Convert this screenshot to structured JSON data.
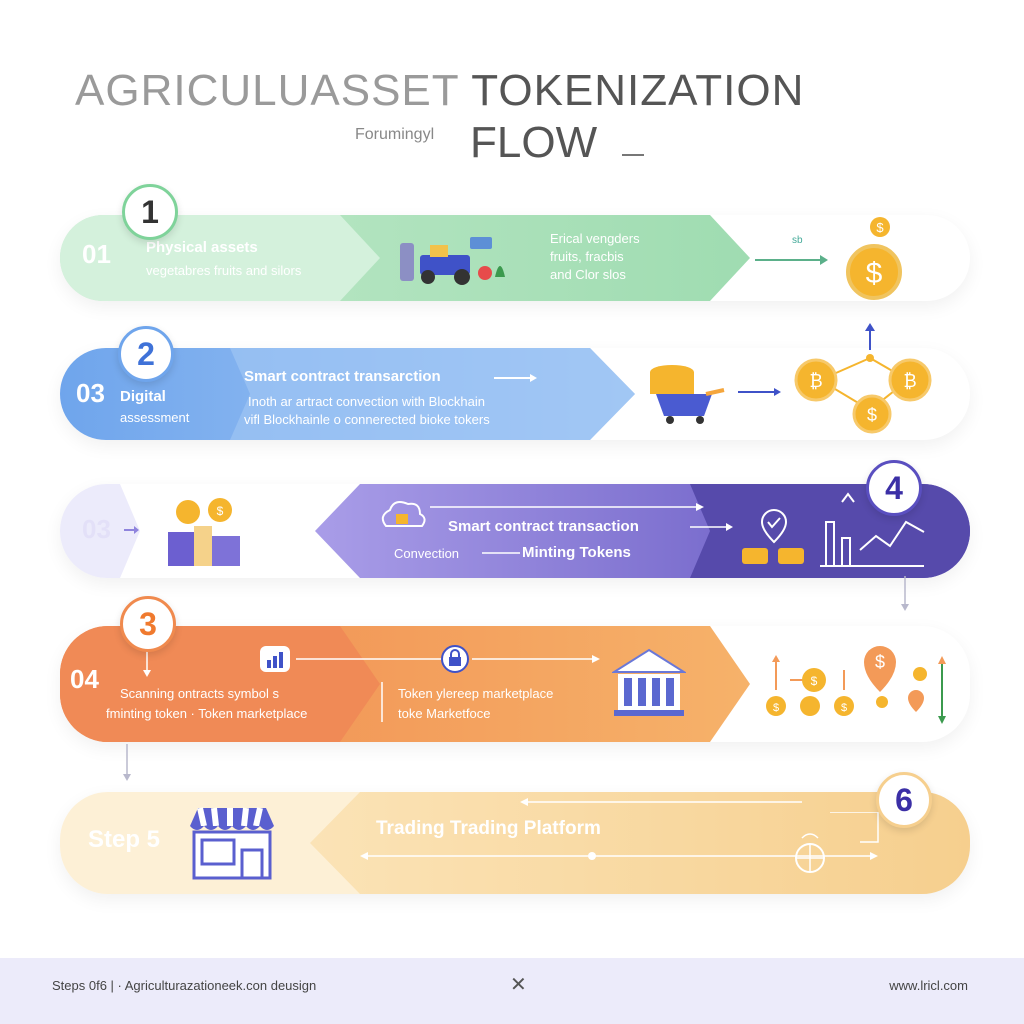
{
  "title": {
    "part1": "AGRICULUASSET",
    "part2": "TOKENIZATION",
    "subtitle": "Forumingyl",
    "part3": "FLOW"
  },
  "rows": [
    {
      "badge": "1",
      "number": "01",
      "label1": "Physical assets",
      "label2": "vegetabres fruits and silors",
      "right1": "Erical vengders",
      "right2": "fruits, fracbis",
      "right3": "and Clor slos",
      "tiny": "sb"
    },
    {
      "badge": "2",
      "number": "03",
      "label1": "Digital",
      "label2": "assessment",
      "center1": "Smart contract transarction",
      "center2": "Inoth ar artract convection with Blockhain",
      "center3": "vifl Blockhainle o connerected bioke tokers"
    },
    {
      "badge": "4",
      "number": "03",
      "center1": "Smart contract transaction",
      "center2a": "Convection",
      "center2b": "Minting Tokens"
    },
    {
      "badge": "3",
      "number": "04",
      "label1": "Scanning ontracts symbol s",
      "label2": "fminting token · Token marketplace",
      "center1": "Token ylereep marketplace",
      "center2": "toke Marketfoce"
    },
    {
      "badge": "6",
      "number": "Step 5",
      "center1": "Trading Trading Platform"
    }
  ],
  "footer": {
    "left": "Steps 0f6 | · Agriculturazationeek.con deusign",
    "close": "✕",
    "right": "www.lricl.com"
  },
  "colors": {
    "green": "#a9dfb8",
    "blue": "#7fb0ee",
    "purple": "#8f84dd",
    "orange": "#f39a58",
    "yellow": "#f9d79a",
    "coin": "#f5b52e"
  }
}
